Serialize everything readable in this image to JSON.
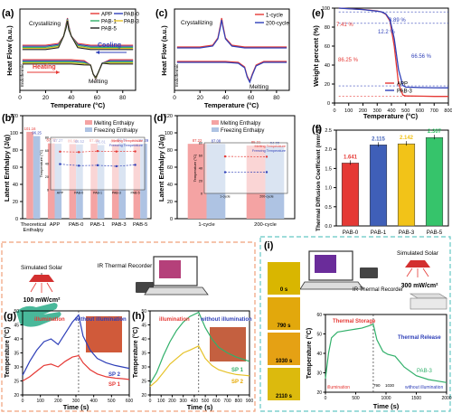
{
  "figure": {
    "panel_labels": [
      "(a)",
      "(b)",
      "(c)",
      "(d)",
      "(e)",
      "(f)",
      "(g)",
      "(h)",
      "(i)"
    ],
    "colors": {
      "APP": "#e53935",
      "PAB0": "#2e3fb8",
      "PAB1": "#31b06a",
      "PAB3": "#e6c229",
      "PAB5": "#222222",
      "cycle1": "#e53935",
      "cycle200": "#2e3fb8",
      "melt_bar": "#f4a3a3",
      "freeze_bar": "#aec3e3",
      "diff_PAB0": "#e53935",
      "diff_PAB1": "#3f5fb8",
      "diff_PAB3": "#f2c318",
      "diff_PAB5": "#36c46b",
      "frame_left": "#f0a07a",
      "frame_right": "#65c7c4"
    }
  },
  "chart_data": [
    {
      "id": "a",
      "type": "line",
      "xlabel": "Temperature (°C)",
      "ylabel": "Heat Flow (a.u.)",
      "xticks": [
        0,
        20,
        40,
        60,
        80
      ],
      "xlim": [
        0,
        90
      ],
      "legend": [
        "APP",
        "PAB-0",
        "PAB-1",
        "PAB-3",
        "PAB-5"
      ],
      "annotations": {
        "crystallizing": "Crystallizing",
        "cooling": "Cooling",
        "heating": "Heating",
        "melting": "Melting",
        "endothermic": "Endothermic"
      },
      "crystallization_peak_c": 37,
      "melting_peak_c": 59
    },
    {
      "id": "b",
      "type": "bar",
      "ylabel": "Latent Enthalpy (J/g)",
      "ylim": [
        0,
        120
      ],
      "yticks": [
        0,
        20,
        40,
        60,
        80,
        100,
        120
      ],
      "categories": [
        "Theoretical Enthalpy",
        "APP",
        "PAB-0",
        "PAB-1",
        "PAB-3",
        "PAB-5"
      ],
      "series": [
        {
          "name": "Melting Enthalpy",
          "values": [
            101.16,
            87.72,
            86.93,
            87.45,
            86.61,
            87.26
          ]
        },
        {
          "name": "Freezing Enthalpy",
          "values": [
            96.25,
            87.27,
            86.52,
            85.81,
            88.04,
            87.29
          ]
        }
      ],
      "inset": {
        "ylabel": "Temperature (°C)",
        "yticks": [
          0,
          20,
          40,
          60,
          80
        ],
        "categories": [
          "APP",
          "PAB-0",
          "PAB-1",
          "PAB-3",
          "PAB-5"
        ],
        "series": [
          {
            "name": "Melting Temperature",
            "values": [
              58.2,
              57.5,
              59.1,
              58.4,
              58.6
            ]
          },
          {
            "name": "Freezing Temperature",
            "values": [
              39.2,
              36.8,
              37.4,
              35.9,
              38.0
            ]
          }
        ]
      }
    },
    {
      "id": "c",
      "type": "line",
      "xlabel": "Temperature (°C)",
      "ylabel": "Heat Flow (a.u.)",
      "xticks": [
        0,
        20,
        40,
        60,
        80
      ],
      "xlim": [
        0,
        90
      ],
      "legend": [
        "1-cycle",
        "200-cycle"
      ],
      "annotations": {
        "crystallizing": "Crystallizing",
        "melting": "Melting",
        "endothermic": "Endothermic"
      }
    },
    {
      "id": "d",
      "type": "bar",
      "ylabel": "Latent Enthalpy (J/g)",
      "ylim": [
        0,
        120
      ],
      "yticks": [
        0,
        20,
        40,
        60,
        80,
        100,
        120
      ],
      "categories": [
        "1-cycle",
        "200-cycle"
      ],
      "series": [
        {
          "name": "Melting Enthalpy",
          "values": [
            87.22,
            85.21
          ]
        },
        {
          "name": "Freezing Enthalpy",
          "values": [
            87.08,
            84.28
          ]
        }
      ],
      "inset": {
        "ylabel": "Temperature (°C)",
        "yticks": [
          0,
          20,
          40,
          60,
          80
        ],
        "categories": [
          "1-cycle",
          "200-cycle"
        ],
        "series": [
          {
            "name": "Melting Temperature",
            "values": [
              58.4,
              58.0
            ]
          },
          {
            "name": "Freezing Temperature",
            "values": [
              33.5,
              33.6
            ]
          }
        ]
      }
    },
    {
      "id": "e",
      "type": "line",
      "xlabel": "Temperature (°C)",
      "ylabel": "Weight percent (%)",
      "xlim": [
        0,
        800
      ],
      "ylim": [
        0,
        100
      ],
      "xticks": [
        0,
        100,
        200,
        300,
        400,
        500,
        600,
        700,
        800
      ],
      "yticks": [
        0,
        20,
        40,
        60,
        80,
        100
      ],
      "series": [
        {
          "name": "APP",
          "x": [
            30,
            200,
            300,
            330,
            360,
            390,
            420,
            450,
            480,
            500,
            600,
            700,
            800
          ],
          "y": [
            100,
            98.6,
            97.0,
            96.0,
            93.5,
            86.4,
            60,
            20,
            8.5,
            7.4,
            7.2,
            7.0,
            7.0
          ]
        },
        {
          "name": "PAB-3",
          "x": [
            30,
            200,
            300,
            330,
            360,
            390,
            420,
            450,
            480,
            500,
            600,
            700,
            800
          ],
          "y": [
            100,
            98.5,
            96.8,
            96.1,
            94.0,
            87.9,
            68,
            35,
            18.5,
            16.8,
            16.3,
            16.1,
            16.0
          ]
        }
      ],
      "annotations": [
        "3.89 %",
        "12.2 %",
        "7.41 %",
        "86.25 %",
        "66.56 %"
      ]
    },
    {
      "id": "f",
      "type": "bar",
      "ylabel": "Thermal Diffusion Coefficient (mm²/s)",
      "ylim": [
        0,
        2.5
      ],
      "yticks": [
        0.0,
        0.5,
        1.0,
        1.5,
        2.0,
        2.5
      ],
      "categories": [
        "PAB-0",
        "PAB-1",
        "PAB-3",
        "PAB-5"
      ],
      "values": [
        1.641,
        2.115,
        2.142,
        2.307
      ],
      "value_labels": [
        "1.641",
        "2.115",
        "2.142",
        "2.307"
      ]
    },
    {
      "id": "g",
      "type": "line",
      "xlabel": "Time (s)",
      "ylabel": "Temperature (°C)",
      "xlim": [
        0,
        600
      ],
      "ylim": [
        20,
        50
      ],
      "xticks": [
        0,
        100,
        200,
        300,
        400,
        500,
        600
      ],
      "yticks": [
        20,
        25,
        30,
        35,
        40,
        45,
        50
      ],
      "divider_x": 315,
      "labels": {
        "on": "illumination",
        "off": "without illumination"
      },
      "series": [
        {
          "name": "SP 1",
          "x": [
            0,
            40,
            80,
            120,
            160,
            200,
            240,
            280,
            315,
            340,
            380,
            420,
            470,
            520,
            560,
            600
          ],
          "y": [
            25,
            26.5,
            28.5,
            30.5,
            31.0,
            30.0,
            32.0,
            33.5,
            34.0,
            31.5,
            29.0,
            27.5,
            26.5,
            26.0,
            25.8,
            25.5
          ]
        },
        {
          "name": "SP 2",
          "x": [
            0,
            40,
            80,
            120,
            160,
            200,
            240,
            280,
            315,
            340,
            380,
            420,
            470,
            520,
            560,
            600
          ],
          "y": [
            27,
            32,
            36,
            39,
            40,
            38,
            42,
            46,
            48.5,
            41,
            36,
            33,
            31.5,
            30.5,
            30.0,
            29.5
          ]
        }
      ]
    },
    {
      "id": "h",
      "type": "line",
      "xlabel": "Time (s)",
      "ylabel": "Temperature (°C)",
      "xlim": [
        0,
        900
      ],
      "ylim": [
        20,
        50
      ],
      "xticks": [
        0,
        100,
        200,
        300,
        400,
        500,
        600,
        700,
        800,
        900
      ],
      "yticks": [
        20,
        25,
        30,
        35,
        40,
        45,
        50
      ],
      "divider_x": 440,
      "labels": {
        "on": "illumination",
        "off": "without illumination"
      },
      "series": [
        {
          "name": "SP 1",
          "x": [
            0,
            60,
            120,
            180,
            240,
            300,
            360,
            440,
            500,
            560,
            620,
            700,
            780,
            860,
            900
          ],
          "y": [
            24,
            28,
            34,
            39,
            43,
            46,
            48,
            49.5,
            44,
            40,
            37,
            35,
            33.5,
            32.5,
            32
          ]
        },
        {
          "name": "SP 2",
          "x": [
            0,
            60,
            120,
            180,
            240,
            300,
            360,
            440,
            500,
            560,
            620,
            700,
            780,
            860,
            900
          ],
          "y": [
            23,
            25,
            28,
            31,
            33,
            35,
            36,
            37.5,
            33,
            30.5,
            29,
            28,
            27.3,
            27,
            26.8
          ]
        }
      ]
    },
    {
      "id": "i",
      "type": "line",
      "xlabel": "Time (s)",
      "ylabel": "Temperature (°C)",
      "xlim": [
        0,
        2000
      ],
      "ylim": [
        20,
        60
      ],
      "xticks": [
        0,
        500,
        1000,
        1500,
        2000
      ],
      "yticks": [
        20,
        30,
        40,
        50,
        60
      ],
      "divider_x": 790,
      "labels": {
        "storage": "Thermal Storage",
        "release": "Thermal Release",
        "on": "illumination",
        "off": "without illumination",
        "series": "PAB-3",
        "marker_a": "790",
        "marker_b": "1030"
      },
      "series": [
        {
          "name": "PAB-3",
          "x": [
            0,
            50,
            100,
            200,
            300,
            400,
            500,
            600,
            700,
            790,
            850,
            950,
            1030,
            1150,
            1300,
            1500,
            1700,
            1900,
            2000
          ],
          "y": [
            27,
            40,
            48,
            51,
            51.5,
            52,
            52.5,
            53,
            54,
            55,
            47,
            41,
            39.5,
            38.5,
            33,
            28.5,
            26.5,
            25.5,
            25
          ]
        }
      ]
    }
  ],
  "schematic_left": {
    "solar_label": "Simulated Solar",
    "recorder_label": "IR Thermal Recorder",
    "intensity": "100 mW/cm²"
  },
  "schematic_right": {
    "solar_label": "Simulated Solar",
    "recorder_label": "IR Thermal Recorder",
    "intensity": "300 mW/cm²",
    "time_labels": [
      "0 s",
      "790 s",
      "1030 s",
      "2110 s"
    ]
  },
  "panel_texts": {
    "e_legend": [
      "APP",
      "PAB-3"
    ],
    "g_sp1": "SP 1",
    "g_sp2": "SP 2",
    "h_sp1": "SP 1",
    "h_sp2": "SP 2"
  }
}
